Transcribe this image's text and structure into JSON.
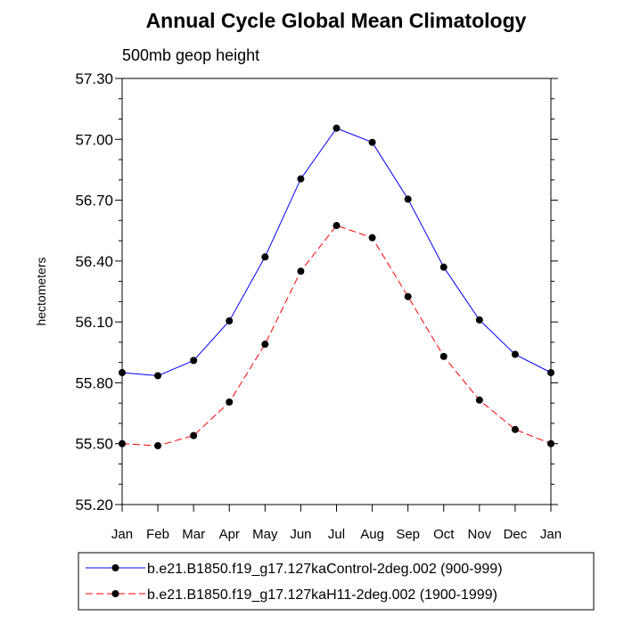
{
  "chart_data": {
    "type": "line",
    "title": "Annual Cycle Global Mean Climatology",
    "subtitle": "500mb geop height",
    "xlabel": "",
    "ylabel": "hectometers",
    "categories": [
      "Jan",
      "Feb",
      "Mar",
      "Apr",
      "May",
      "Jun",
      "Jul",
      "Aug",
      "Sep",
      "Oct",
      "Nov",
      "Dec",
      "Jan"
    ],
    "ylim": [
      55.2,
      57.3
    ],
    "yticks": [
      "55.20",
      "55.50",
      "55.80",
      "56.10",
      "56.40",
      "56.70",
      "57.00",
      "57.30"
    ],
    "grid": false,
    "legend_position": "bottom",
    "series": [
      {
        "name": "b.e21.B1850.f19_g17.127kaControl-2deg.002 (900-999)",
        "color": "#0000ff",
        "dash": "solid",
        "values": [
          55.85,
          55.835,
          55.91,
          56.105,
          56.42,
          56.805,
          57.055,
          56.985,
          56.705,
          56.37,
          56.11,
          55.94,
          55.85
        ]
      },
      {
        "name": "b.e21.B1850.f19_g17.127kaH11-2deg.002 (1900-1999)",
        "color": "#ff0000",
        "dash": "dashed",
        "values": [
          55.5,
          55.49,
          55.54,
          55.705,
          55.99,
          56.35,
          56.575,
          56.515,
          56.225,
          55.93,
          55.715,
          55.57,
          55.5
        ]
      }
    ]
  }
}
